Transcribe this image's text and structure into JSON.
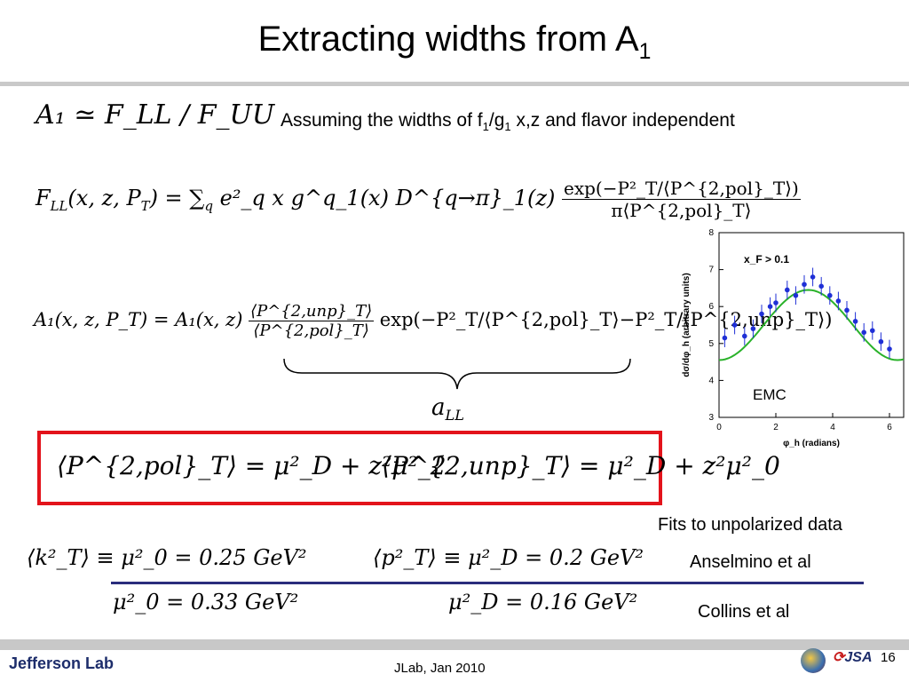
{
  "slide": {
    "title_main": "Extracting widths from A",
    "title_sub": "1",
    "page_number": "16",
    "footer_center": "JLab, Jan 2010",
    "footer_logo": "Jefferson Lab",
    "jsa_logo": "JSA"
  },
  "assumption": {
    "prefix": "Assuming the widths of f",
    "f_sub": "1",
    "mid": "/g",
    "g_sub": "1",
    "suffix": " x,z and flavor independent"
  },
  "equations": {
    "a1_ratio": "A₁ ≃ F_LL / F_UU",
    "fll_lhs": "F",
    "fll_lhs_sub": "LL",
    "fll_args": "(x, z, P",
    "fll_args_sub": "T",
    "fll_rest": ") = ∑",
    "fll_sum_index": "q",
    "fll_body": "e²_q x g^q_1(x) D^{q→π}_1(z)",
    "fll_num": "exp(−P²_T/⟨P^{2,pol}_T⟩)",
    "fll_den": "π⟨P^{2,pol}_T⟩",
    "a1_lhs": "A₁(x, z, P_T) = A₁(x, z)",
    "a1_frac_num": "⟨P^{2,unp}_T⟩",
    "a1_frac_den": "⟨P^{2,pol}_T⟩",
    "a1_exp": "exp(−P²_T/⟨P^{2,pol}_T⟩−P²_T/⟨P^{2,unp}_T⟩)",
    "brace_label": "a",
    "brace_label_sub": "LL",
    "box_left": "⟨P^{2,pol}_T⟩ = μ²_D + z²μ²_2",
    "box_right": "⟨P^{2,unp}_T⟩ = μ²_D + z²μ²_0",
    "fit1_left": "⟨k²_T⟩ ≡ μ²_0 = 0.25 GeV²",
    "fit1_right": "⟨p²_T⟩ ≡ μ²_D = 0.2 GeV²",
    "fit2_left": "μ²_0 = 0.33 GeV²",
    "fit2_right": "μ²_D = 0.16 GeV²"
  },
  "labels": {
    "fits_heading": "Fits to unpolarized data",
    "fit1_source": "Anselmino et al",
    "fit2_source": "Collins et al"
  },
  "chart_data": {
    "type": "scatter",
    "title": "",
    "annotation": "x_F > 0.1",
    "experiment_label": "EMC",
    "xlabel": "φ_h (radians)",
    "ylabel": "dσ/dφ_h (arbitrary units)",
    "xlim": [
      0,
      6.5
    ],
    "ylim": [
      3,
      8
    ],
    "x_ticks": [
      0,
      2,
      4,
      6
    ],
    "y_ticks": [
      3,
      4,
      5,
      6,
      7,
      8
    ],
    "grid": false,
    "series": [
      {
        "x": [
          0.2,
          0.55,
          0.9,
          1.2,
          1.5,
          1.8,
          2.0,
          2.4,
          2.7,
          3.0,
          3.3,
          3.6,
          3.9,
          4.2,
          4.5,
          4.8,
          5.1,
          5.4,
          5.7,
          6.0
        ],
        "y": [
          5.15,
          5.5,
          5.2,
          5.4,
          5.8,
          6.0,
          6.1,
          6.45,
          6.3,
          6.6,
          6.8,
          6.55,
          6.3,
          6.15,
          5.9,
          5.6,
          5.3,
          5.35,
          5.05,
          4.85
        ]
      }
    ],
    "fit_curve_color": "#2ab22a",
    "point_color": "#1f2fd6"
  },
  "colors": {
    "box_border": "#e3131b",
    "divider": "#2a2d7c"
  }
}
